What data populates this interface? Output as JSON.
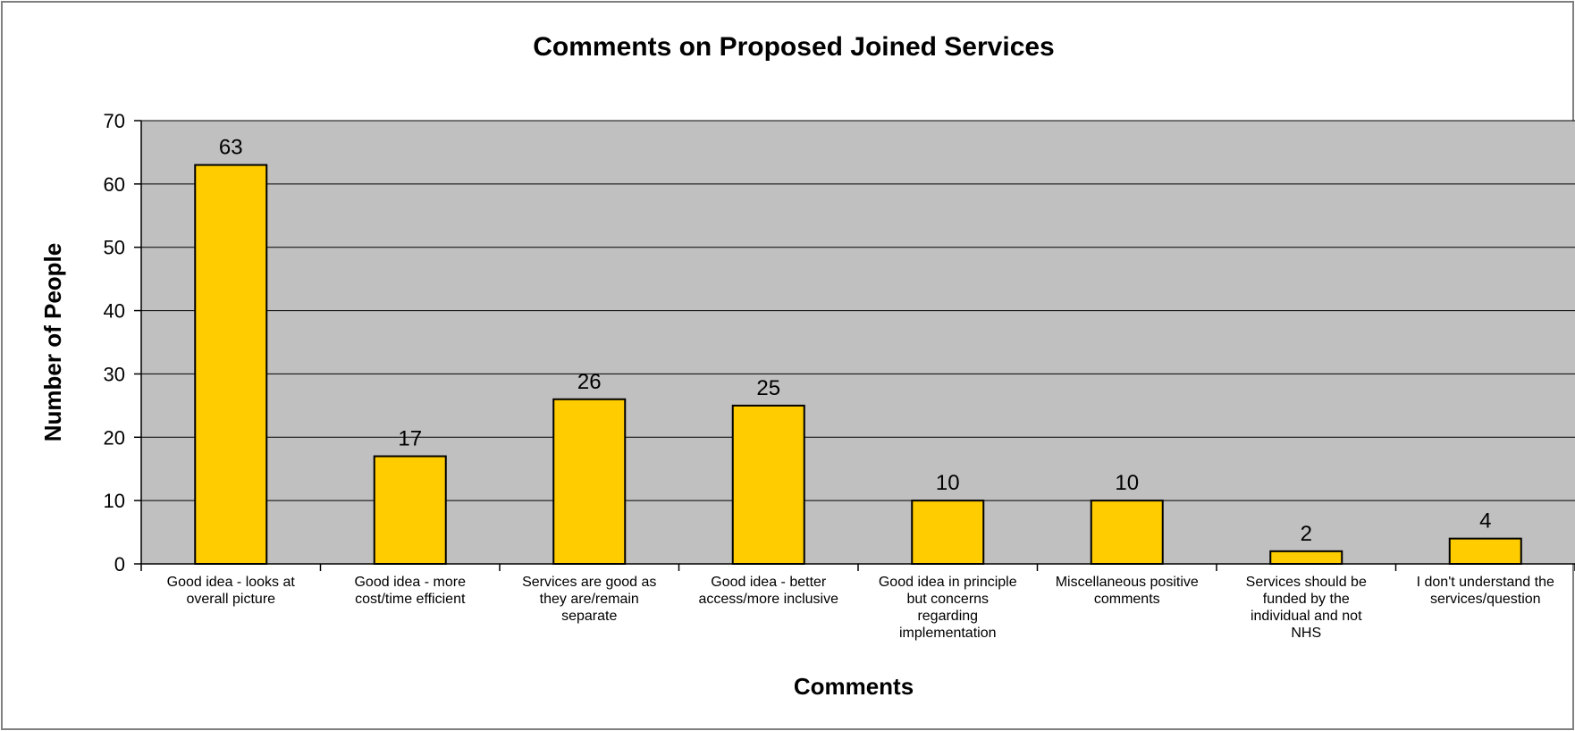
{
  "colors": {
    "bar_fill": "#ffcc00",
    "bar_stroke": "#000000",
    "plot_background": "#c0c0c0",
    "gridline": "#000000",
    "frame": "#808080"
  },
  "chart_data": {
    "type": "bar",
    "title": "Comments on Proposed Joined Services",
    "xlabel": "Comments",
    "ylabel": "Number of People",
    "ylim": [
      0,
      70
    ],
    "ytick_step": 10,
    "yticks": [
      "0",
      "10",
      "20",
      "30",
      "40",
      "50",
      "60",
      "70"
    ],
    "grid": true,
    "legend": "none",
    "categories": [
      [
        "Good idea - looks at",
        "overall picture"
      ],
      [
        "Good idea - more",
        "cost/time efficient"
      ],
      [
        "Services are good as",
        "they are/remain",
        "separate"
      ],
      [
        "Good idea - better",
        "access/more inclusive"
      ],
      [
        "Good idea in principle",
        "but concerns",
        "regarding",
        "implementation"
      ],
      [
        "Miscellaneous positive",
        "comments"
      ],
      [
        "Services should be",
        "funded by the",
        "individual and not",
        "NHS"
      ],
      [
        "I don't understand the",
        "services/question"
      ]
    ],
    "values": [
      63,
      17,
      26,
      25,
      10,
      10,
      2,
      4
    ],
    "data_labels": [
      "63",
      "17",
      "26",
      "25",
      "10",
      "10",
      "2",
      "4"
    ]
  }
}
